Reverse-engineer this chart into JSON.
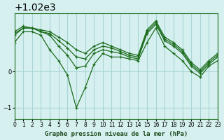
{
  "title": "Graphe pression niveau de la mer (hPa)",
  "bg_color": "#d6f0f0",
  "grid_color": "#aad4d4",
  "line_color": "#1a6b1a",
  "marker_color": "#1a6b1a",
  "xlim": [
    0,
    23
  ],
  "ylim": [
    1018.7,
    1021.6
  ],
  "yticks": [
    1019,
    1020
  ],
  "xticks": [
    0,
    1,
    2,
    3,
    4,
    5,
    6,
    7,
    8,
    9,
    10,
    11,
    12,
    13,
    14,
    15,
    16,
    17,
    18,
    19,
    20,
    21,
    22,
    23
  ],
  "series": [
    [
      1020.8,
      1021.1,
      1021.1,
      1021.0,
      1020.6,
      1020.3,
      1019.9,
      1019.0,
      1019.55,
      1020.2,
      1020.5,
      1020.4,
      1020.4,
      1020.35,
      1020.3,
      1020.8,
      1021.2,
      1020.7,
      1020.5,
      1020.3,
      1020.0,
      1019.85,
      1020.15,
      1020.3
    ],
    [
      1021.0,
      1021.2,
      1021.2,
      1021.1,
      1021.0,
      1020.7,
      1020.45,
      1020.1,
      1020.15,
      1020.5,
      1020.6,
      1020.55,
      1020.5,
      1020.4,
      1020.35,
      1021.05,
      1021.3,
      1020.85,
      1020.7,
      1020.5,
      1020.15,
      1019.95,
      1020.2,
      1020.4
    ],
    [
      1021.05,
      1021.2,
      1021.2,
      1021.1,
      1021.05,
      1020.85,
      1020.65,
      1020.4,
      1020.35,
      1020.6,
      1020.7,
      1020.65,
      1020.55,
      1020.45,
      1020.4,
      1021.1,
      1021.35,
      1020.9,
      1020.75,
      1020.55,
      1020.2,
      1020.0,
      1020.25,
      1020.45
    ],
    [
      1021.1,
      1021.25,
      1021.2,
      1021.15,
      1021.1,
      1020.95,
      1020.8,
      1020.6,
      1020.5,
      1020.7,
      1020.8,
      1020.7,
      1020.6,
      1020.5,
      1020.45,
      1021.15,
      1021.4,
      1020.95,
      1020.8,
      1020.6,
      1020.25,
      1020.05,
      1020.3,
      1020.5
    ]
  ]
}
